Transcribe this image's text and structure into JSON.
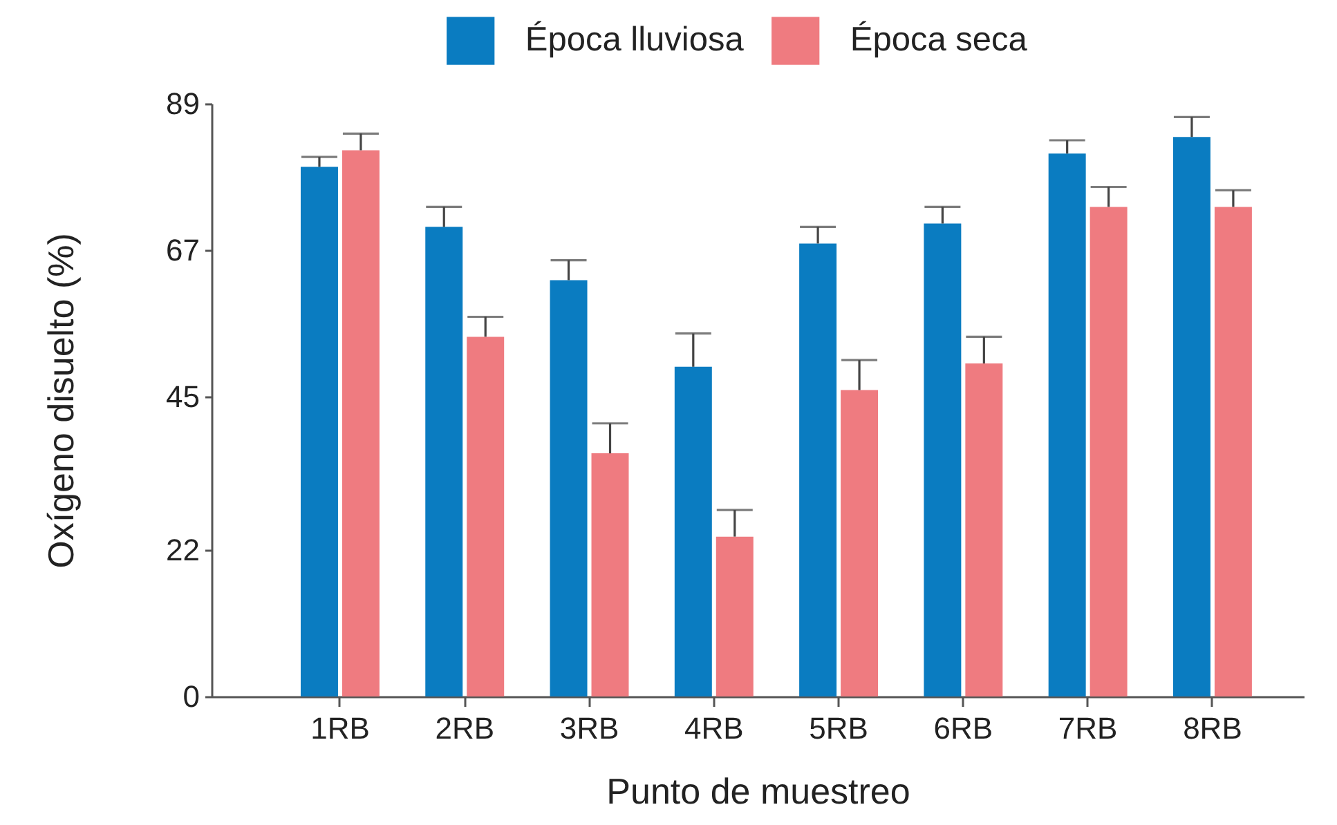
{
  "chart_data": {
    "type": "bar",
    "xlabel": "Punto de muestreo",
    "ylabel": "Oxígeno disuelto (%)",
    "categories": [
      "1RB",
      "2RB",
      "3RB",
      "4RB",
      "5RB",
      "6RB",
      "7RB",
      "8RB"
    ],
    "series": [
      {
        "name": "Época lluviosa",
        "color": "#0a7cc1",
        "values": [
          79.5,
          70.5,
          62.5,
          49.5,
          68,
          71,
          81.5,
          84
        ],
        "errors": [
          [
            79.5,
            81
          ],
          [
            70.5,
            73.5
          ],
          [
            62.5,
            65.5
          ],
          [
            49.5,
            54.5
          ],
          [
            68,
            70.5
          ],
          [
            71,
            73.5
          ],
          [
            81.5,
            83.5
          ],
          [
            84,
            87
          ]
        ]
      },
      {
        "name": "Época seca",
        "color": "#ef7b80",
        "values": [
          82,
          54,
          36.5,
          24,
          46,
          50,
          73.5,
          73.5
        ],
        "errors": [
          [
            82,
            84.5
          ],
          [
            54,
            57
          ],
          [
            36.5,
            41
          ],
          [
            24,
            28
          ],
          [
            46,
            50.5
          ],
          [
            50,
            54
          ],
          [
            73.5,
            76.5
          ],
          [
            73.5,
            76
          ]
        ]
      }
    ],
    "ylim": [
      0,
      89
    ],
    "yticks": [
      0,
      22,
      45,
      67,
      89
    ],
    "legend": "top"
  }
}
